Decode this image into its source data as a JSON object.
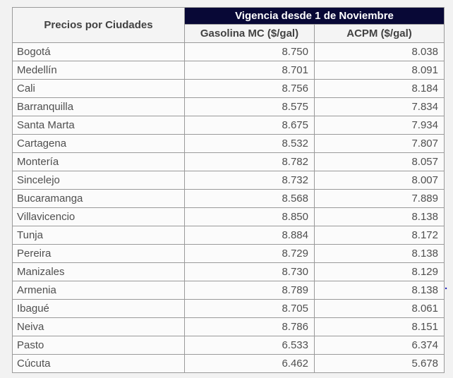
{
  "page": {
    "background_color": "#f2f2f2",
    "banner_color": "#080836",
    "header_bg_color": "#f4f4f4",
    "cell_bg_color": "#fbfbfb",
    "border_color": "#9a9a9a",
    "text_color": "#4f4f4f",
    "link_dot": "."
  },
  "table": {
    "corner_header": "Precios por Ciudades",
    "banner": "Vigencia desde 1 de Noviembre",
    "columns": [
      "Gasolina MC ($/gal)",
      "ACPM ($/gal)"
    ],
    "rows": [
      {
        "city": "Bogotá",
        "gasolina": "8.750",
        "acpm": "8.038"
      },
      {
        "city": "Medellín",
        "gasolina": "8.701",
        "acpm": "8.091"
      },
      {
        "city": "Cali",
        "gasolina": "8.756",
        "acpm": "8.184"
      },
      {
        "city": "Barranquilla",
        "gasolina": "8.575",
        "acpm": "7.834"
      },
      {
        "city": "Santa Marta",
        "gasolina": "8.675",
        "acpm": "7.934"
      },
      {
        "city": "Cartagena",
        "gasolina": "8.532",
        "acpm": "7.807"
      },
      {
        "city": "Montería",
        "gasolina": "8.782",
        "acpm": "8.057"
      },
      {
        "city": "Sincelejo",
        "gasolina": "8.732",
        "acpm": "8.007"
      },
      {
        "city": "Bucaramanga",
        "gasolina": "8.568",
        "acpm": "7.889"
      },
      {
        "city": "Villavicencio",
        "gasolina": "8.850",
        "acpm": "8.138"
      },
      {
        "city": "Tunja",
        "gasolina": "8.884",
        "acpm": "8.172"
      },
      {
        "city": "Pereira",
        "gasolina": "8.729",
        "acpm": "8.138"
      },
      {
        "city": "Manizales",
        "gasolina": "8.730",
        "acpm": "8.129"
      },
      {
        "city": "Armenia",
        "gasolina": "8.789",
        "acpm": "8.138"
      },
      {
        "city": "Ibagué",
        "gasolina": "8.705",
        "acpm": "8.061"
      },
      {
        "city": "Neiva",
        "gasolina": "8.786",
        "acpm": "8.151"
      },
      {
        "city": "Pasto",
        "gasolina": "6.533",
        "acpm": "6.374"
      },
      {
        "city": "Cúcuta",
        "gasolina": "6.462",
        "acpm": "5.678"
      }
    ]
  }
}
